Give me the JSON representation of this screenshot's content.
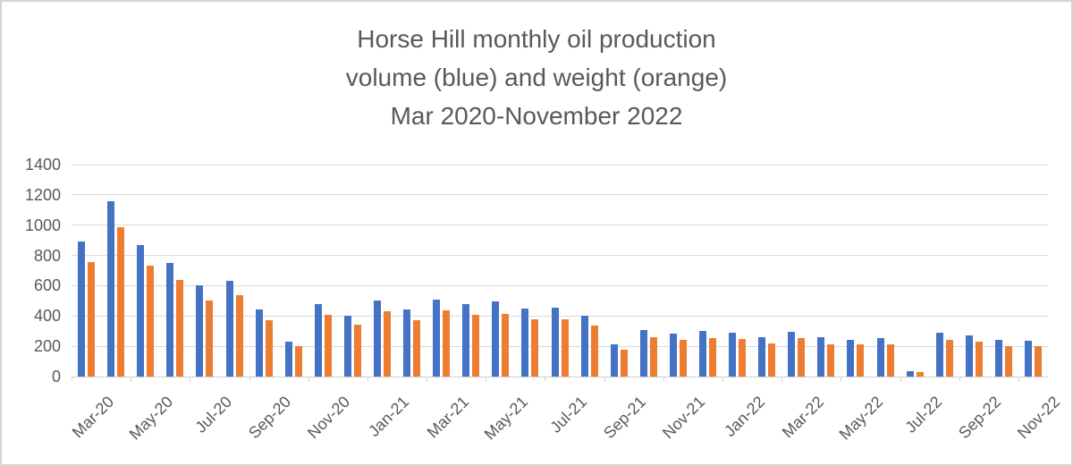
{
  "title": {
    "line1": "Horse Hill monthly oil production",
    "line2": "volume (blue) and weight (orange)",
    "line3": "Mar 2020-November 2022"
  },
  "colors": {
    "volume_blue": "#4472C4",
    "weight_orange": "#ED7D31",
    "text_gray": "#595959",
    "gridline_gray": "#D9D9D9"
  },
  "chart_data": {
    "type": "bar",
    "title": "Horse Hill monthly oil production volume (blue) and weight (orange) Mar 2020-November 2022",
    "categories": [
      "Mar-20",
      "Apr-20",
      "May-20",
      "Jun-20",
      "Jul-20",
      "Aug-20",
      "Sep-20",
      "Oct-20",
      "Nov-20",
      "Dec-20",
      "Jan-21",
      "Feb-21",
      "Mar-21",
      "Apr-21",
      "May-21",
      "Jun-21",
      "Jul-21",
      "Aug-21",
      "Sep-21",
      "Oct-21",
      "Nov-21",
      "Dec-21",
      "Jan-22",
      "Feb-22",
      "Mar-22",
      "Apr-22",
      "May-22",
      "Jun-22",
      "Jul-22",
      "Aug-22",
      "Sep-22",
      "Oct-22",
      "Nov-22"
    ],
    "series": [
      {
        "name": "volume (blue)",
        "color": "#4472C4",
        "values": [
          890,
          1160,
          870,
          750,
          600,
          635,
          445,
          230,
          480,
          400,
          500,
          445,
          510,
          480,
          495,
          450,
          455,
          400,
          215,
          310,
          285,
          300,
          290,
          260,
          295,
          260,
          245,
          255,
          35,
          290,
          270,
          240,
          235
        ]
      },
      {
        "name": "weight (orange)",
        "color": "#ED7D31",
        "values": [
          755,
          985,
          735,
          640,
          505,
          535,
          375,
          200,
          405,
          340,
          430,
          370,
          440,
          405,
          415,
          380,
          380,
          335,
          175,
          260,
          240,
          255,
          250,
          220,
          255,
          215,
          210,
          215,
          30,
          240,
          230,
          200,
          200
        ]
      }
    ],
    "x_tick_labels": [
      "Mar-20",
      "May-20",
      "Jul-20",
      "Sep-20",
      "Nov-20",
      "Jan-21",
      "Mar-21",
      "May-21",
      "Jul-21",
      "Sep-21",
      "Nov-21",
      "Jan-22",
      "Mar-22",
      "May-22",
      "Jul-22",
      "Sep-22",
      "Nov-22"
    ],
    "x_tick_every": 2,
    "xlabel": "",
    "ylabel": "",
    "ylim": [
      0,
      1400
    ],
    "y_tick_step": 200,
    "y_tick_labels": [
      "0",
      "200",
      "400",
      "600",
      "800",
      "1000",
      "1200",
      "1400"
    ],
    "grid": true,
    "legend": false
  }
}
